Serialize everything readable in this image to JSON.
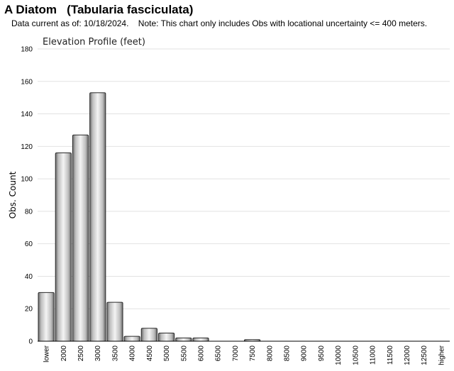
{
  "header": {
    "title": "A Diatom   (Tabularia fasciculata)",
    "subtitle": "Data current as of: 10/18/2024.    Note: This chart only includes Obs with locational uncertainty <= 400 meters."
  },
  "chart_data": {
    "type": "bar",
    "title": "Elevation Profile (feet)",
    "xlabel": "",
    "ylabel": "Obs. Count",
    "ylim": [
      0,
      180
    ],
    "yticks": [
      "0",
      "20",
      "40",
      "60",
      "80",
      "100",
      "120",
      "140",
      "160",
      "180"
    ],
    "grid": true,
    "categories": [
      "lower",
      "2000",
      "2500",
      "3000",
      "3500",
      "4000",
      "4500",
      "5000",
      "5500",
      "6000",
      "6500",
      "7000",
      "7500",
      "8000",
      "8500",
      "9000",
      "9500",
      "10000",
      "10500",
      "11000",
      "11500",
      "12000",
      "12500",
      "higher"
    ],
    "values": [
      30,
      116,
      127,
      153,
      24,
      3,
      8,
      5,
      2,
      2,
      0,
      0,
      1,
      0,
      0,
      0,
      0,
      0,
      0,
      0,
      0,
      0,
      0,
      0
    ],
    "bar_color": "#b0b0b0"
  }
}
